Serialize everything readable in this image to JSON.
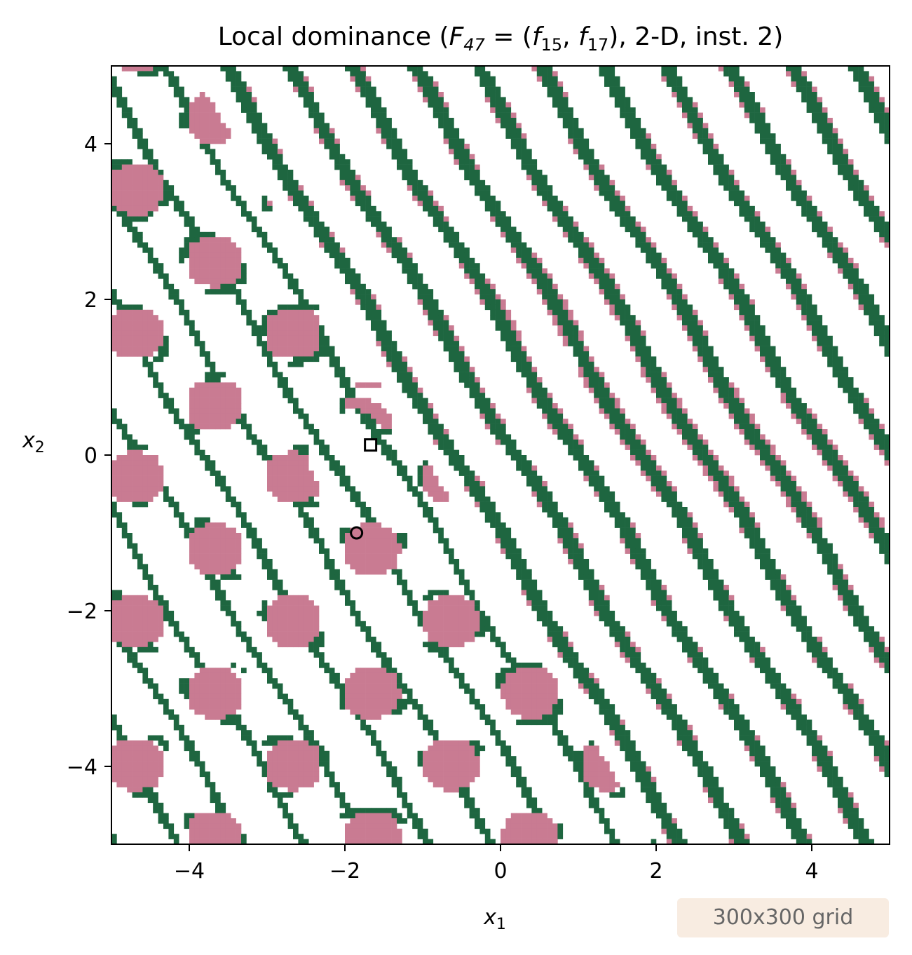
{
  "chart_data": {
    "type": "heatmap",
    "title": "Local dominance ($F_{47} = (f_{15}, f_{17})$, 2-D, inst. 2)",
    "title_parts": {
      "prefix": "Local dominance (",
      "F": "F",
      "F_sub": "47",
      "eq": " = (",
      "f1": "f",
      "f1_sub": "15",
      "comma": ", ",
      "f2": "f",
      "f2_sub": "17",
      "suffix": "), 2-D, inst. 2)"
    },
    "xlabel": "x",
    "xlabel_sub": "1",
    "ylabel": "x",
    "ylabel_sub": "2",
    "xlim": [
      -5,
      5
    ],
    "ylim": [
      -5,
      5
    ],
    "xticks": [
      -4,
      -2,
      0,
      2,
      4
    ],
    "yticks": [
      -4,
      -2,
      0,
      2,
      4
    ],
    "xtick_labels": [
      "−4",
      "−2",
      "0",
      "2",
      "4"
    ],
    "ytick_labels": [
      "−4",
      "−2",
      "0",
      "2",
      "4"
    ],
    "grid_resolution": [
      300,
      300
    ],
    "grid_note": "300x300 grid",
    "colors": {
      "background": "#ffffff",
      "region_a": "#c97b92",
      "region_b": "#1e6640"
    },
    "markers": [
      {
        "shape": "square",
        "x": -1.67,
        "y": 0.13
      },
      {
        "shape": "circle",
        "x": -1.85,
        "y": -1.0
      }
    ]
  }
}
